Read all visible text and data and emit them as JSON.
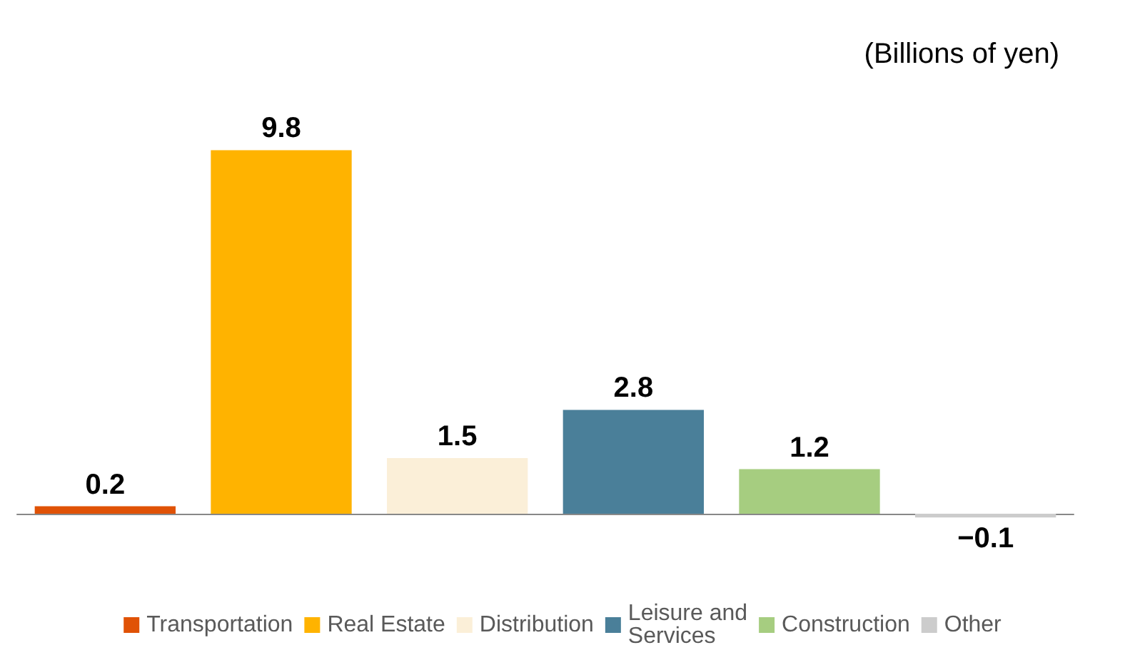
{
  "chart_data": {
    "type": "bar",
    "ylabel": "(Billions of yen)",
    "categories": [
      null,
      null,
      null,
      null,
      null,
      null
    ],
    "stacked": true,
    "data_labels": true,
    "legend": "bottom",
    "grid": false,
    "series": [
      {
        "name": "Transportation",
        "color": "#e05206",
        "values": [
          0.2,
          null,
          null,
          null,
          null,
          null
        ]
      },
      {
        "name": "Real Estate",
        "color": "#ffb300",
        "values": [
          null,
          9.8,
          null,
          null,
          null,
          null
        ]
      },
      {
        "name": "Distribution",
        "color": "#fbefd8",
        "values": [
          null,
          null,
          1.5,
          null,
          null,
          null
        ]
      },
      {
        "name": "Leisure and\nServices",
        "color": "#4a7f99",
        "values": [
          null,
          null,
          null,
          2.8,
          null,
          null
        ]
      },
      {
        "name": "Construction",
        "color": "#a6cd80",
        "values": [
          null,
          null,
          null,
          null,
          1.2,
          null
        ]
      },
      {
        "name": "Other",
        "color": "#cccccc",
        "values": [
          null,
          null,
          null,
          null,
          null,
          -0.1
        ]
      }
    ]
  }
}
